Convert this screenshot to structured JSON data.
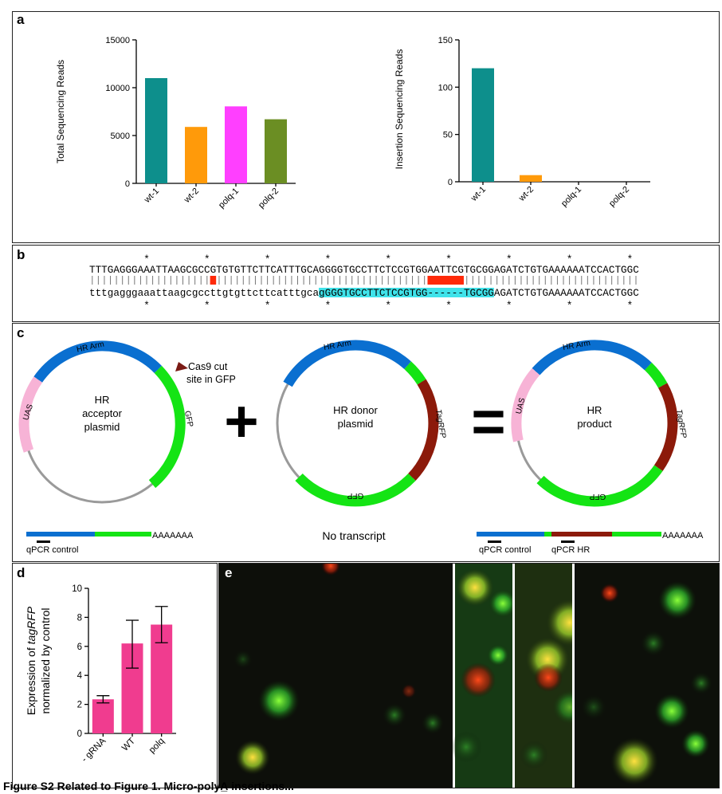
{
  "panels": {
    "a": "a",
    "b": "b",
    "c": "c",
    "d": "d",
    "e": "e"
  },
  "chart_data": [
    {
      "type": "bar",
      "panel": "a-left",
      "categories": [
        "wt-1",
        "wt-2",
        "polq-1",
        "polq-2"
      ],
      "values": [
        11000,
        5900,
        8050,
        6700
      ],
      "colors": [
        "#0d8f8c",
        "#ff9a0a",
        "#ff3fff",
        "#6b8e23"
      ],
      "ylabel": "Total Sequencing Reads",
      "ylim": [
        0,
        15000
      ],
      "yticks": [
        "0",
        "5000",
        "10000",
        "15000"
      ]
    },
    {
      "type": "bar",
      "panel": "a-right",
      "categories": [
        "wt-1",
        "wt-2",
        "polq-1",
        "polq-2"
      ],
      "values": [
        120,
        7,
        0,
        0
      ],
      "colors": [
        "#0d8f8c",
        "#ff9a0a",
        "#ff3fff",
        "#6b8e23"
      ],
      "ylabel": "Insertion Sequencing Reads",
      "ylim": [
        0,
        150
      ],
      "yticks": [
        "0",
        "50",
        "100",
        "150"
      ]
    },
    {
      "type": "bar",
      "panel": "d",
      "categories": [
        "- gRNA",
        "WT",
        "polq"
      ],
      "values": [
        2.35,
        6.2,
        7.5
      ],
      "errors": [
        [
          2.1,
          2.6
        ],
        [
          4.5,
          7.8
        ],
        [
          6.25,
          8.75
        ]
      ],
      "colors": [
        "#f03c8f",
        "#f03c8f",
        "#f03c8f"
      ],
      "ylabel_line1_pre": "Expression of ",
      "ylabel_line1_em": "tagRFP",
      "ylabel_line2": "normalized by control",
      "ylim": [
        0,
        10
      ],
      "yticks": [
        "0",
        "2",
        "4",
        "6",
        "8",
        "10"
      ]
    }
  ],
  "sequence": {
    "top": "TTTGAGGGAAATTAAGCGCCGTGTGTTCTTCATTTGCAGGGGTGCCTTCTCCGTGGAATTCGTGCGGAGATCTGTGAAAAAATCCACTGGC",
    "bottom_pre": "tttgagggaaattaagcgccttgtgttcttcatttgca",
    "bottom_highlight": "gGGGTGCCTTCTCCGTGG------TGCGG",
    "bottom_post": "AGATCTGTGAAAAAATCCACTGGC",
    "star": "*"
  },
  "plasmids": {
    "acceptor": {
      "line1": "HR",
      "line2": "acceptor",
      "line3": "plasmid"
    },
    "donor": {
      "line1": "HR donor",
      "line2": "plasmid"
    },
    "product": {
      "line1": "HR",
      "line2": "product"
    },
    "hr_arm": "HR Arm",
    "uas": "UAS",
    "gfp": "GFP",
    "tagrfp": "TagRFP",
    "cas9_line1": "Cas9 cut",
    "cas9_line2": "site in GFP",
    "plus": "+",
    "equals": "="
  },
  "transcripts": {
    "polyA": "AAAAAAA",
    "no_transcript": "No transcript",
    "qpcr_control": "qPCR control",
    "qpcr_hr": "qPCR HR"
  },
  "colors": {
    "hr_arm": "#0a6fd0",
    "gfp": "#14e414",
    "uas": "#f7b3d6",
    "tagrfp": "#8c1a0a",
    "backbone": "#9a9a9a",
    "highlight": "#3fe3ea",
    "deletion": "#ff2a0a"
  },
  "caption": "Figure S2 Related to Figure 1. Micro-polyA̲ insertions... "
}
